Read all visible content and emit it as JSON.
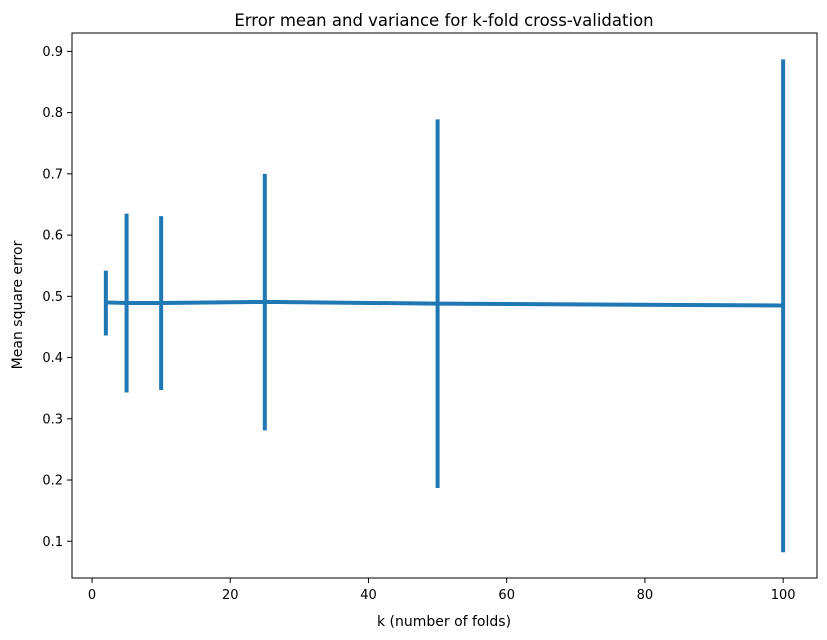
{
  "chart_data": {
    "type": "line",
    "title": "Error mean and variance for k-fold cross-validation",
    "xlabel": "k (number of folds)",
    "ylabel": "Mean square error",
    "xlim": [
      -2.9,
      104.9
    ],
    "ylim": [
      0.04,
      0.93
    ],
    "xticks": [
      0,
      20,
      40,
      60,
      80,
      100
    ],
    "yticks": [
      0.1,
      0.2,
      0.3,
      0.4,
      0.5,
      0.6,
      0.7,
      0.8,
      0.9
    ],
    "grid": false,
    "legend": "none",
    "color": "#1f77b4",
    "series": [
      {
        "x": [
          2,
          5,
          10,
          25,
          50,
          100
        ],
        "y": [
          0.49,
          0.489,
          0.489,
          0.491,
          0.488,
          0.485
        ],
        "err_low": [
          0.436,
          0.343,
          0.347,
          0.281,
          0.187,
          0.082
        ],
        "err_high": [
          0.542,
          0.635,
          0.631,
          0.7,
          0.789,
          0.887
        ]
      }
    ]
  }
}
